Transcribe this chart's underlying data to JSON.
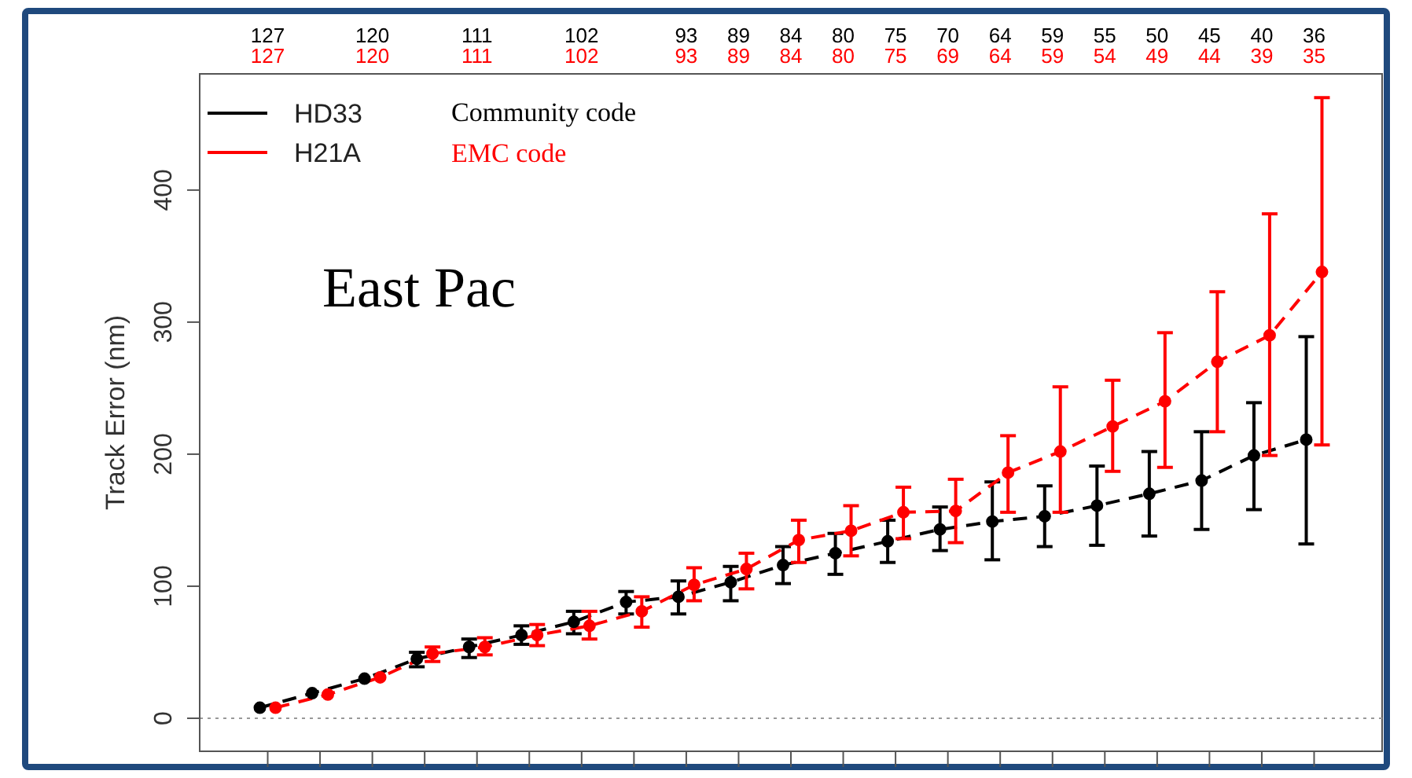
{
  "chart_data": {
    "type": "line",
    "title": "East Pac",
    "ylabel": "Track Error (nm)",
    "categories": [
      null,
      null,
      null,
      null,
      null,
      null,
      null,
      null,
      null,
      null,
      null,
      null,
      null,
      null,
      null,
      null,
      null,
      null,
      null,
      null,
      null
    ],
    "series": [
      {
        "name": "HD33",
        "color": "#000000",
        "values": [
          8,
          19,
          30,
          45,
          54,
          63,
          73,
          88,
          92,
          103,
          116,
          125,
          134,
          143,
          149,
          153,
          161,
          170,
          180,
          199,
          211
        ],
        "errors": [
          null,
          null,
          null,
          [
            39,
            50
          ],
          [
            46,
            60
          ],
          [
            56,
            70
          ],
          [
            64,
            81
          ],
          [
            79,
            96
          ],
          [
            79,
            104
          ],
          [
            89,
            115
          ],
          [
            102,
            130
          ],
          [
            109,
            140
          ],
          [
            118,
            150
          ],
          [
            127,
            160
          ],
          [
            120,
            179
          ],
          [
            130,
            176
          ],
          [
            131,
            191
          ],
          [
            138,
            202
          ],
          [
            143,
            217
          ],
          [
            158,
            239
          ],
          [
            132,
            289
          ]
        ]
      },
      {
        "name": "H21A",
        "color": "#ff0000",
        "values": [
          8,
          18,
          31,
          49,
          54,
          63,
          70,
          81,
          101,
          113,
          135,
          142,
          156,
          157,
          186,
          202,
          221,
          240,
          270,
          290,
          338
        ],
        "errors": [
          null,
          null,
          null,
          [
            43,
            54
          ],
          [
            48,
            61
          ],
          [
            55,
            71
          ],
          [
            60,
            81
          ],
          [
            69,
            92
          ],
          [
            89,
            114
          ],
          [
            98,
            125
          ],
          [
            118,
            150
          ],
          [
            123,
            161
          ],
          [
            136,
            175
          ],
          [
            133,
            181
          ],
          [
            156,
            214
          ],
          [
            156,
            251
          ],
          [
            187,
            256
          ],
          [
            190,
            292
          ],
          [
            217,
            323
          ],
          [
            199,
            382
          ],
          [
            207,
            470
          ]
        ]
      }
    ],
    "ylim": [
      -25,
      488
    ],
    "yticks": [
      0,
      100,
      200,
      300,
      400
    ],
    "ref_lines": [
      {
        "axis": "y",
        "value": 0,
        "color": "#999999",
        "line_style": "dotted"
      }
    ],
    "legend": "top left",
    "marker": "circle",
    "line_style": "dashed",
    "annotations": [
      "127",
      "120",
      "111",
      "102",
      "93",
      "89",
      "84",
      "80",
      "75",
      "70",
      "64",
      "59",
      "55",
      "50",
      "45",
      "40",
      "36",
      "127",
      "120",
      "111",
      "102",
      "93",
      "89",
      "84",
      "80",
      "75",
      "69",
      "64",
      "59",
      "54",
      "49",
      "44",
      "39",
      "35",
      "Community code",
      "EMC code"
    ]
  }
}
